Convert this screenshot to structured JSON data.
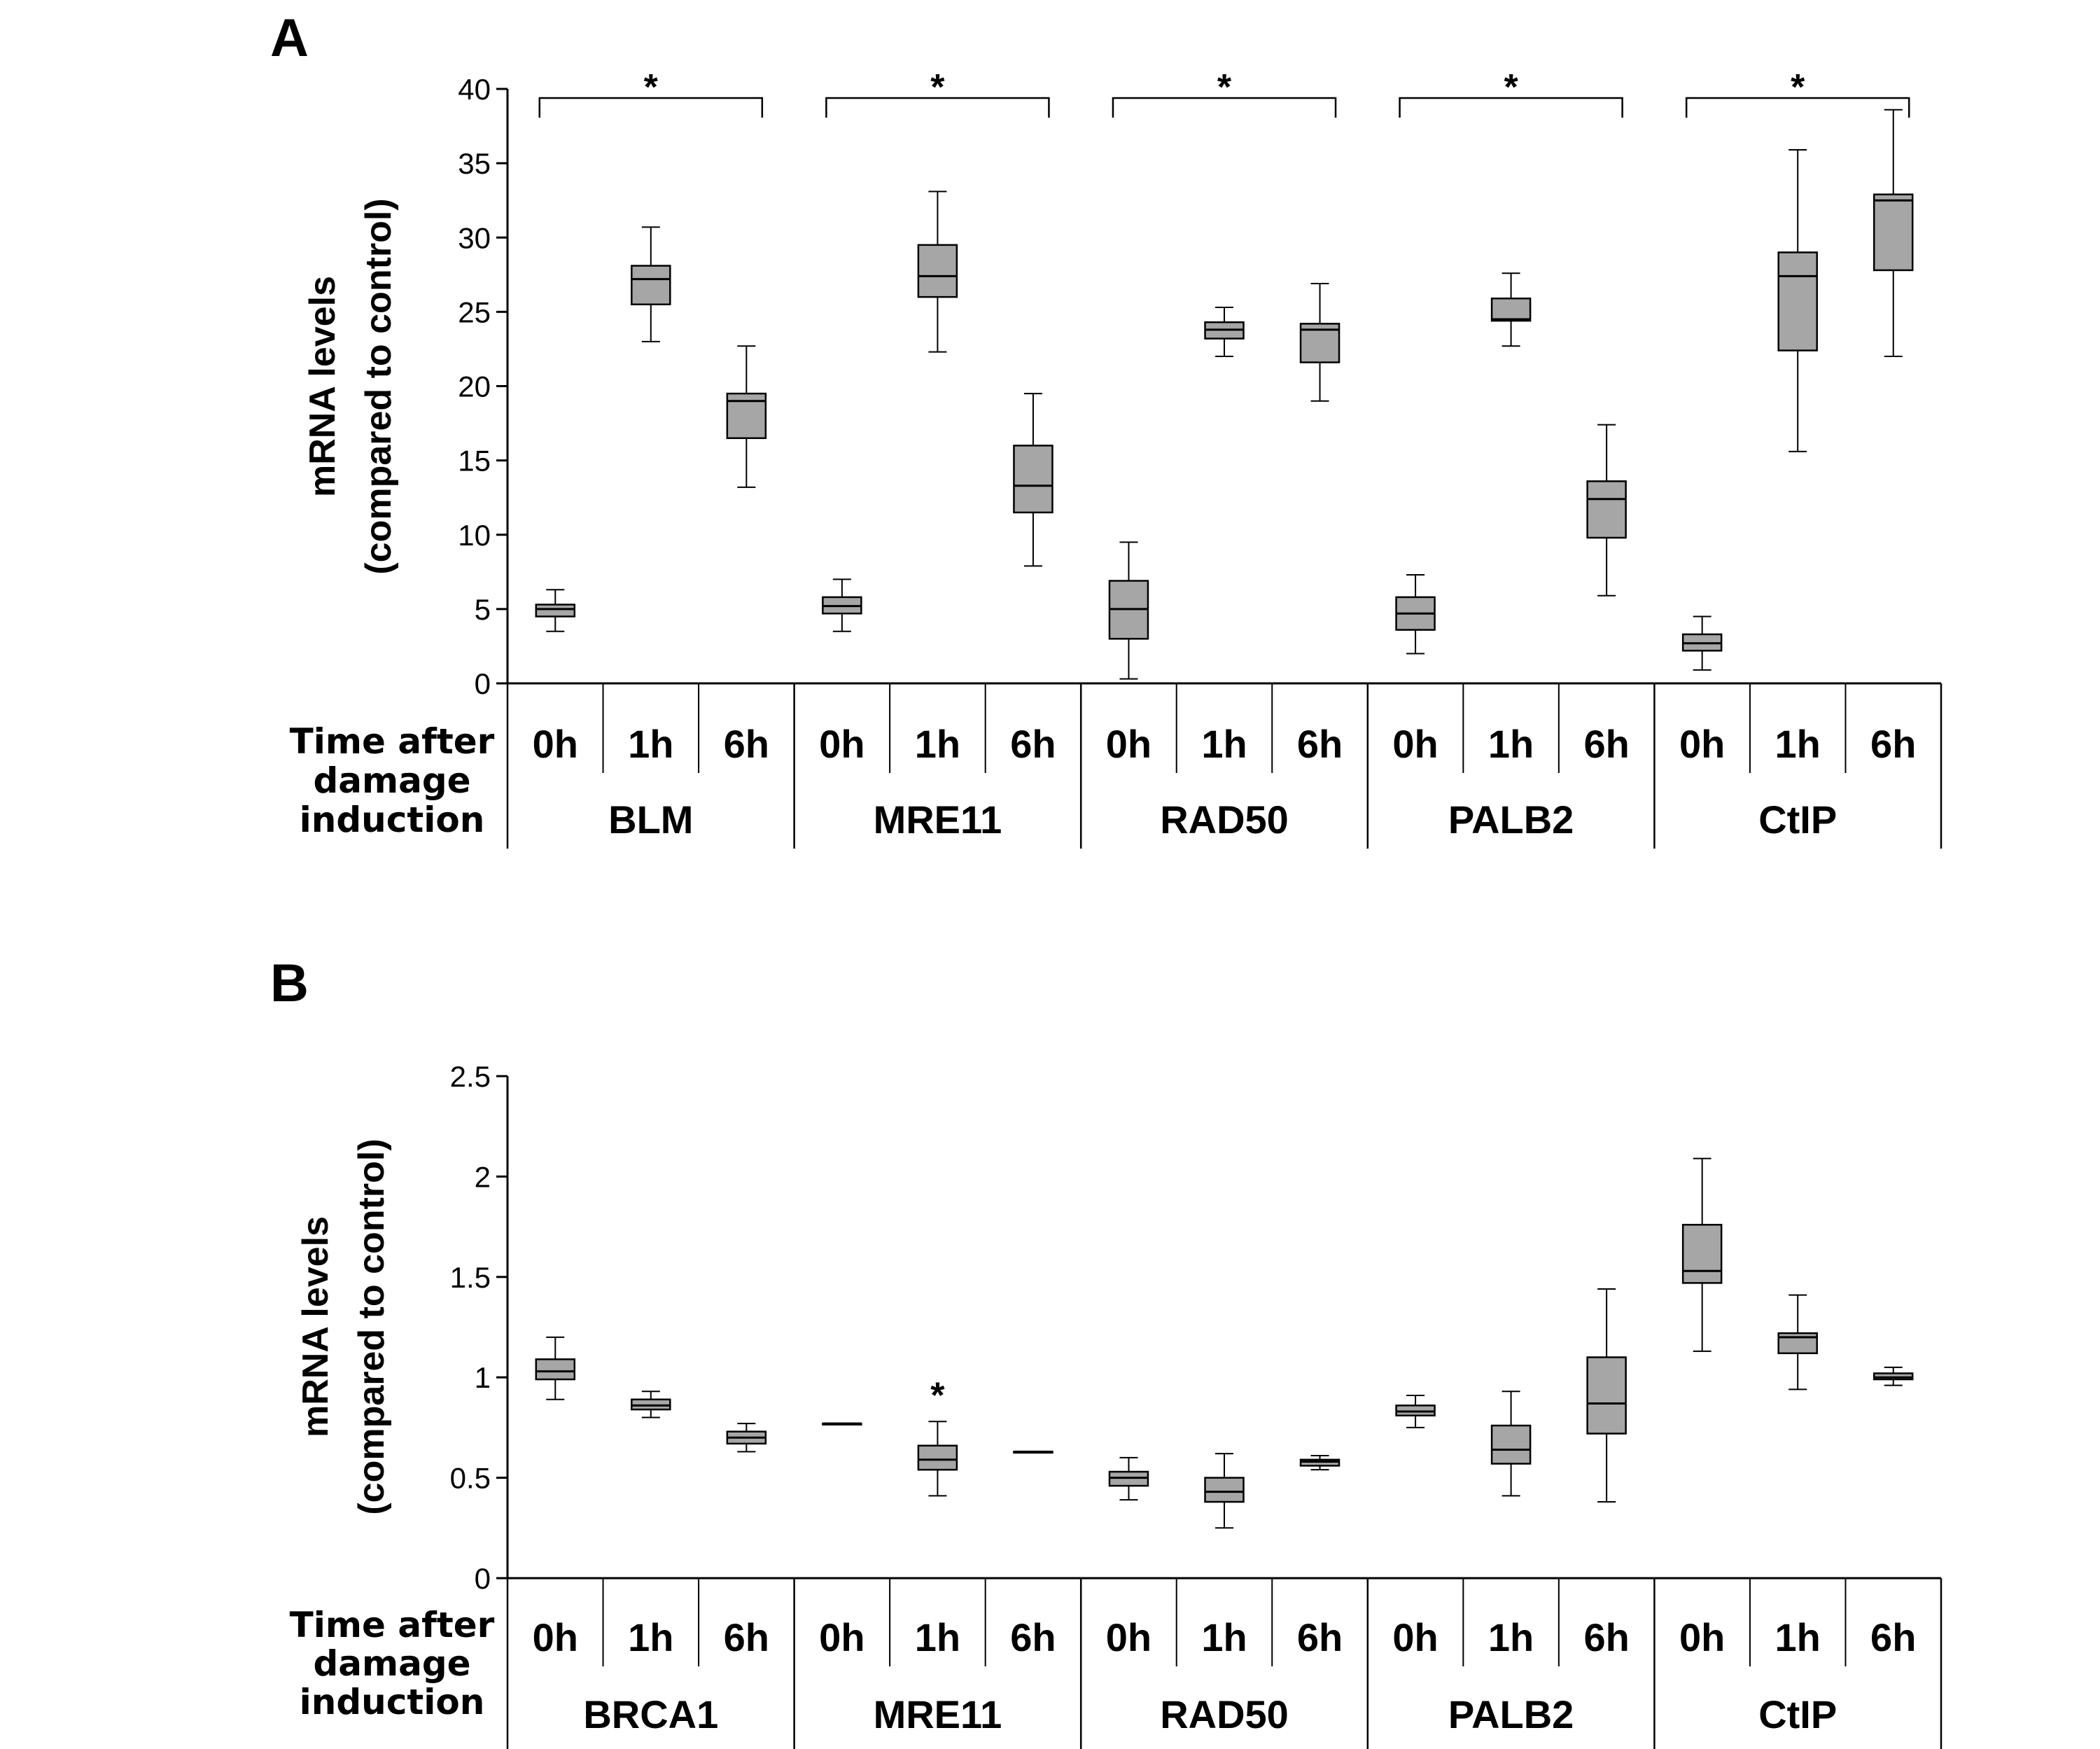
{
  "chart_data": [
    {
      "panel": "A",
      "type": "box",
      "ylabel": [
        "mRNA levels",
        "(compared to control)"
      ],
      "ylim": [
        0,
        40
      ],
      "yticks": [
        "0",
        "5",
        "10",
        "15",
        "20",
        "25",
        "30",
        "35",
        "40"
      ],
      "row_title": [
        "Time after",
        "damage",
        "induction"
      ],
      "time_labels": [
        "0h",
        "1h",
        "6h"
      ],
      "groups": [
        {
          "name": "BLM",
          "significance": "*",
          "boxes": [
            {
              "time": "0h",
              "min": 3.5,
              "q1": 4.5,
              "median": 5.0,
              "q3": 5.3,
              "max": 6.3
            },
            {
              "time": "1h",
              "min": 23.0,
              "q1": 25.5,
              "median": 27.2,
              "q3": 28.1,
              "max": 30.7
            },
            {
              "time": "6h",
              "min": 13.2,
              "q1": 16.5,
              "median": 19.0,
              "q3": 19.5,
              "max": 22.7
            }
          ]
        },
        {
          "name": "MRE11",
          "significance": "*",
          "boxes": [
            {
              "time": "0h",
              "min": 3.5,
              "q1": 4.7,
              "median": 5.2,
              "q3": 5.8,
              "max": 7.0
            },
            {
              "time": "1h",
              "min": 22.3,
              "q1": 26.0,
              "median": 27.4,
              "q3": 29.5,
              "max": 33.1
            },
            {
              "time": "6h",
              "min": 7.9,
              "q1": 11.5,
              "median": 13.3,
              "q3": 16.0,
              "max": 19.5
            }
          ]
        },
        {
          "name": "RAD50",
          "significance": "*",
          "boxes": [
            {
              "time": "0h",
              "min": 0.3,
              "q1": 3.0,
              "median": 5.0,
              "q3": 6.9,
              "max": 9.5
            },
            {
              "time": "1h",
              "min": 22.0,
              "q1": 23.2,
              "median": 23.8,
              "q3": 24.3,
              "max": 25.3
            },
            {
              "time": "6h",
              "min": 19.0,
              "q1": 21.6,
              "median": 23.8,
              "q3": 24.2,
              "max": 26.9
            }
          ]
        },
        {
          "name": "PALB2",
          "significance": "*",
          "boxes": [
            {
              "time": "0h",
              "min": 2.0,
              "q1": 3.6,
              "median": 4.7,
              "q3": 5.8,
              "max": 7.3
            },
            {
              "time": "1h",
              "min": 22.7,
              "q1": 24.4,
              "median": 24.5,
              "q3": 25.9,
              "max": 27.6
            },
            {
              "time": "6h",
              "min": 5.9,
              "q1": 9.8,
              "median": 12.4,
              "q3": 13.6,
              "max": 17.4
            }
          ]
        },
        {
          "name": "CtIP",
          "significance": "*",
          "boxes": [
            {
              "time": "0h",
              "min": 0.9,
              "q1": 2.2,
              "median": 2.7,
              "q3": 3.3,
              "max": 4.5
            },
            {
              "time": "1h",
              "min": 15.6,
              "q1": 22.4,
              "median": 27.4,
              "q3": 29.0,
              "max": 35.9
            },
            {
              "time": "6h",
              "min": 22.0,
              "q1": 27.8,
              "median": 32.5,
              "q3": 32.9,
              "max": 38.6
            }
          ]
        }
      ]
    },
    {
      "panel": "B",
      "type": "box",
      "ylabel": [
        "mRNA levels",
        "(compared to control)"
      ],
      "ylim": [
        0,
        2.5
      ],
      "yticks": [
        "0",
        "0.5",
        "1",
        "1.5",
        "2",
        "2.5"
      ],
      "row_title": [
        "Time after",
        "damage",
        "induction"
      ],
      "time_labels": [
        "0h",
        "1h",
        "6h"
      ],
      "groups": [
        {
          "name": "BRCA1",
          "boxes": [
            {
              "time": "0h",
              "min": 0.89,
              "q1": 0.99,
              "median": 1.03,
              "q3": 1.09,
              "max": 1.2
            },
            {
              "time": "1h",
              "min": 0.8,
              "q1": 0.84,
              "median": 0.86,
              "q3": 0.89,
              "max": 0.93
            },
            {
              "time": "6h",
              "min": 0.63,
              "q1": 0.67,
              "median": 0.7,
              "q3": 0.73,
              "max": 0.77
            }
          ]
        },
        {
          "name": "MRE11",
          "boxes": [
            {
              "time": "0h",
              "min": 0.77,
              "q1": 0.77,
              "median": 0.77,
              "q3": 0.77,
              "max": 0.77
            },
            {
              "time": "1h",
              "min": 0.41,
              "q1": 0.54,
              "median": 0.59,
              "q3": 0.66,
              "max": 0.78,
              "significance": "*"
            },
            {
              "time": "6h",
              "min": 0.63,
              "q1": 0.63,
              "median": 0.63,
              "q3": 0.63,
              "max": 0.63
            }
          ]
        },
        {
          "name": "RAD50",
          "boxes": [
            {
              "time": "0h",
              "min": 0.39,
              "q1": 0.46,
              "median": 0.5,
              "q3": 0.53,
              "max": 0.6
            },
            {
              "time": "1h",
              "min": 0.25,
              "q1": 0.38,
              "median": 0.43,
              "q3": 0.5,
              "max": 0.62
            },
            {
              "time": "6h",
              "min": 0.54,
              "q1": 0.56,
              "median": 0.58,
              "q3": 0.59,
              "max": 0.61
            }
          ]
        },
        {
          "name": "PALB2",
          "boxes": [
            {
              "time": "0h",
              "min": 0.75,
              "q1": 0.81,
              "median": 0.83,
              "q3": 0.86,
              "max": 0.91
            },
            {
              "time": "1h",
              "min": 0.41,
              "q1": 0.57,
              "median": 0.64,
              "q3": 0.76,
              "max": 0.93
            },
            {
              "time": "6h",
              "min": 0.38,
              "q1": 0.72,
              "median": 0.87,
              "q3": 1.1,
              "max": 1.44
            }
          ]
        },
        {
          "name": "CtIP",
          "boxes": [
            {
              "time": "0h",
              "min": 1.13,
              "q1": 1.47,
              "median": 1.53,
              "q3": 1.76,
              "max": 2.09
            },
            {
              "time": "1h",
              "min": 0.94,
              "q1": 1.12,
              "median": 1.2,
              "q3": 1.22,
              "max": 1.41
            },
            {
              "time": "6h",
              "min": 0.96,
              "q1": 0.99,
              "median": 1.0,
              "q3": 1.02,
              "max": 1.05
            }
          ]
        }
      ]
    }
  ]
}
